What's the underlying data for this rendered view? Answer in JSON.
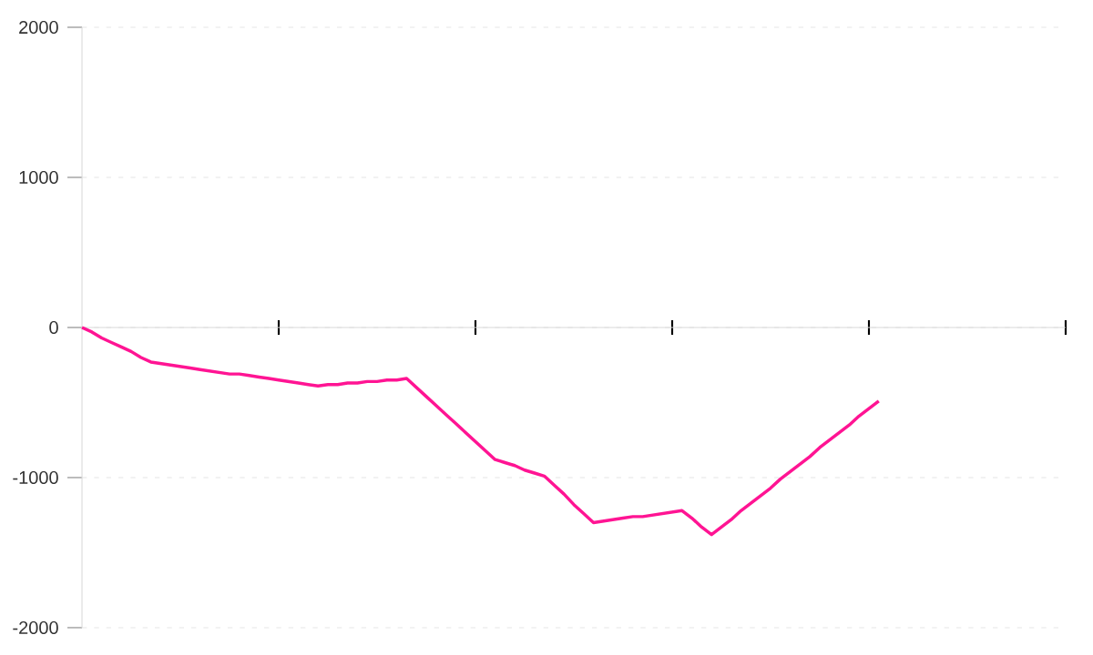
{
  "chart_data": {
    "type": "line",
    "categories": [
      null,
      null,
      null,
      null,
      null,
      null,
      null,
      null,
      null,
      null,
      null,
      null,
      null,
      null,
      null,
      null,
      null,
      null,
      null,
      null,
      null,
      null,
      null,
      null,
      null,
      null,
      null,
      null,
      null,
      null,
      null,
      null,
      null,
      null,
      null,
      null,
      null,
      null,
      null,
      null,
      null,
      null,
      null,
      null,
      null,
      null,
      null,
      null,
      null,
      null,
      null,
      null,
      null,
      null,
      null,
      null,
      null,
      null,
      null,
      null,
      null,
      null,
      null,
      null,
      null,
      null,
      null,
      null,
      null,
      null,
      null,
      null,
      null,
      null,
      null,
      null,
      null,
      null,
      null,
      null,
      null,
      null,
      null,
      null,
      null,
      null,
      null,
      null,
      null,
      null,
      null,
      null,
      null,
      null,
      null,
      null,
      null,
      null,
      null,
      null,
      null
    ],
    "series": [
      {
        "color": "#ff1493",
        "values": [
          0,
          -30,
          -70,
          -100,
          -130,
          -160,
          -200,
          -230,
          -240,
          -250,
          -260,
          -270,
          -280,
          -290,
          -300,
          -310,
          -310,
          -320,
          -330,
          -340,
          -350,
          -360,
          -370,
          -380,
          -390,
          -380,
          -380,
          -370,
          -370,
          -360,
          -360,
          -350,
          -350,
          -340,
          -400,
          -460,
          -520,
          -580,
          -640,
          -700,
          -760,
          -820,
          -880,
          -900,
          -920,
          -950,
          -970,
          -990,
          -1050,
          -1110,
          -1180,
          -1240,
          -1300,
          -1290,
          -1280,
          -1270,
          -1260,
          -1260,
          -1250,
          -1240,
          -1230,
          -1220,
          -1270,
          -1330,
          -1380,
          -1330,
          -1280,
          -1220,
          -1170,
          -1120,
          -1070,
          -1010,
          -960,
          -910,
          -860,
          -800,
          -750,
          -700,
          -650,
          -590,
          -540,
          -490,
          null,
          null,
          null,
          null,
          null,
          null,
          null,
          null,
          null,
          null,
          null,
          null,
          null,
          null,
          null,
          null,
          null,
          null,
          null
        ]
      }
    ],
    "ylim": [
      -2000,
      2000
    ],
    "yticks": [
      -2000,
      -1000,
      0,
      1000,
      2000
    ],
    "grid": "y",
    "tick_labels": "y",
    "marker": "none",
    "line_style": "solid"
  }
}
